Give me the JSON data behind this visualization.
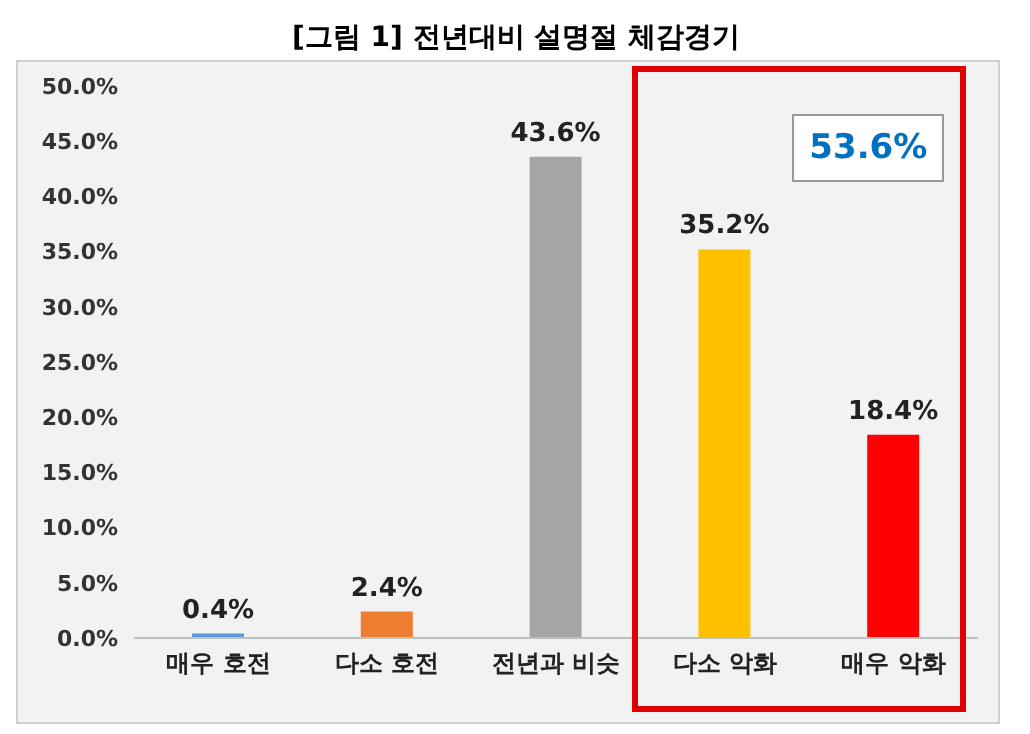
{
  "chart_data": {
    "type": "bar",
    "title": "[그림 1] 전년대비 설명절 체감경기",
    "categories": [
      "매우 호전",
      "다소 호전",
      "전년과 비슷",
      "다소 악화",
      "매우 악화"
    ],
    "values": [
      0.4,
      2.4,
      43.6,
      35.2,
      18.4
    ],
    "colors": [
      "#5b9bd5",
      "#ed7d31",
      "#a5a5a5",
      "#ffc000",
      "#ff0000"
    ],
    "value_labels": [
      "0.4%",
      "2.4%",
      "43.6%",
      "35.2%",
      "18.4%"
    ],
    "ylim": [
      0,
      50
    ],
    "yticks": [
      {
        "value": 0,
        "label": "0.0%"
      },
      {
        "value": 5,
        "label": "5.0%"
      },
      {
        "value": 10,
        "label": "10.0%"
      },
      {
        "value": 15,
        "label": "15.0%"
      },
      {
        "value": 20,
        "label": "20.0%"
      },
      {
        "value": 25,
        "label": "25.0%"
      },
      {
        "value": 30,
        "label": "30.0%"
      },
      {
        "value": 35,
        "label": "35.0%"
      },
      {
        "value": 40,
        "label": "40.0%"
      },
      {
        "value": 45,
        "label": "45.0%"
      },
      {
        "value": 50,
        "label": "50.0%"
      }
    ],
    "annotations": [
      "53.6%"
    ]
  }
}
